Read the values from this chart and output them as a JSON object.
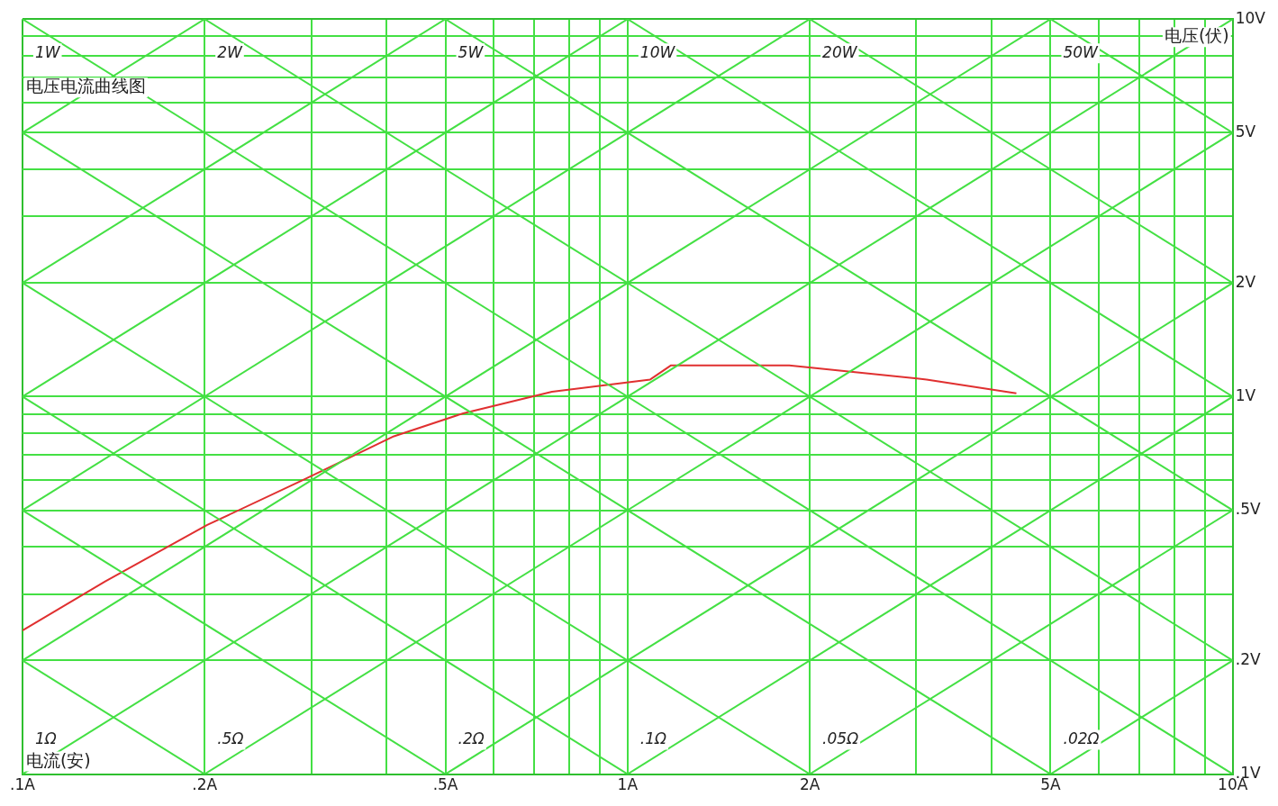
{
  "chart_data": {
    "type": "line",
    "title": "电压电流曲线图",
    "xlabel": "电流(安)",
    "ylabel": "电压(伏)",
    "log": "xy",
    "grid": true,
    "legend": false,
    "marker": "none",
    "line_style": "solid",
    "xlim": [
      0.1,
      10
    ],
    "ylim": [
      0.1,
      10
    ],
    "xticks": [
      {
        "value": 0.1,
        "label": ".1A"
      },
      {
        "value": 0.2,
        "label": ".2A"
      },
      {
        "value": 0.3,
        "label": null
      },
      {
        "value": 0.4,
        "label": null
      },
      {
        "value": 0.5,
        "label": ".5A"
      },
      {
        "value": 0.6,
        "label": null
      },
      {
        "value": 0.7,
        "label": null
      },
      {
        "value": 0.8,
        "label": null
      },
      {
        "value": 0.9,
        "label": null
      },
      {
        "value": 1,
        "label": "1A"
      },
      {
        "value": 2,
        "label": "2A"
      },
      {
        "value": 3,
        "label": null
      },
      {
        "value": 4,
        "label": null
      },
      {
        "value": 5,
        "label": "5A"
      },
      {
        "value": 6,
        "label": null
      },
      {
        "value": 7,
        "label": null
      },
      {
        "value": 8,
        "label": null
      },
      {
        "value": 9,
        "label": null
      },
      {
        "value": 10,
        "label": "10A"
      }
    ],
    "yticks": [
      {
        "value": 0.1,
        "label": ".1V"
      },
      {
        "value": 0.2,
        "label": ".2V"
      },
      {
        "value": 0.3,
        "label": null
      },
      {
        "value": 0.4,
        "label": null
      },
      {
        "value": 0.5,
        "label": ".5V"
      },
      {
        "value": 0.6,
        "label": null
      },
      {
        "value": 0.7,
        "label": null
      },
      {
        "value": 0.8,
        "label": null
      },
      {
        "value": 0.9,
        "label": null
      },
      {
        "value": 1,
        "label": "1V"
      },
      {
        "value": 2,
        "label": "2V"
      },
      {
        "value": 3,
        "label": null
      },
      {
        "value": 4,
        "label": null
      },
      {
        "value": 5,
        "label": "5V"
      },
      {
        "value": 6,
        "label": null
      },
      {
        "value": 7,
        "label": null
      },
      {
        "value": 8,
        "label": null
      },
      {
        "value": 9,
        "label": null
      },
      {
        "value": 10,
        "label": "10V"
      }
    ],
    "series": [
      {
        "color": "#44e044",
        "x": [
          0.1,
          0.2
        ],
        "values": [
          0.2,
          0.1
        ]
      },
      {
        "color": "#44e044",
        "x": [
          0.1,
          0.5
        ],
        "values": [
          0.5,
          0.1
        ]
      },
      {
        "color": "#44e044",
        "x": [
          0.1,
          1
        ],
        "values": [
          1,
          0.1
        ]
      },
      {
        "color": "#44e044",
        "x": [
          0.1,
          2
        ],
        "values": [
          2,
          0.1
        ]
      },
      {
        "color": "#44e044",
        "x": [
          0.1,
          5
        ],
        "values": [
          5,
          0.1
        ]
      },
      {
        "name": "1W",
        "color": "#44e044",
        "x": [
          0.1,
          10
        ],
        "values": [
          10,
          0.1
        ]
      },
      {
        "name": "2W",
        "color": "#44e044",
        "x": [
          0.2,
          10
        ],
        "values": [
          10,
          0.2
        ]
      },
      {
        "name": "5W",
        "color": "#44e044",
        "x": [
          0.5,
          10
        ],
        "values": [
          10,
          0.5
        ]
      },
      {
        "name": "10W",
        "color": "#44e044",
        "x": [
          1,
          10
        ],
        "values": [
          10,
          1
        ]
      },
      {
        "name": "20W",
        "color": "#44e044",
        "x": [
          2,
          10
        ],
        "values": [
          10,
          2
        ]
      },
      {
        "name": "50W",
        "color": "#44e044",
        "x": [
          5,
          10
        ],
        "values": [
          10,
          5
        ]
      },
      {
        "name": ".02Ω",
        "color": "#44e044",
        "x": [
          5,
          10
        ],
        "values": [
          0.1,
          0.2
        ]
      },
      {
        "name": ".05Ω",
        "color": "#44e044",
        "x": [
          2,
          10
        ],
        "values": [
          0.1,
          0.5
        ]
      },
      {
        "name": ".1Ω",
        "color": "#44e044",
        "x": [
          1,
          10
        ],
        "values": [
          0.1,
          1
        ]
      },
      {
        "name": ".2Ω",
        "color": "#44e044",
        "x": [
          0.5,
          10
        ],
        "values": [
          0.1,
          2
        ]
      },
      {
        "name": ".5Ω",
        "color": "#44e044",
        "x": [
          0.2,
          10
        ],
        "values": [
          0.1,
          5
        ]
      },
      {
        "name": "1Ω",
        "color": "#44e044",
        "x": [
          0.1,
          10
        ],
        "values": [
          0.1,
          10
        ]
      },
      {
        "color": "#44e044",
        "x": [
          0.1,
          5
        ],
        "values": [
          0.2,
          10
        ]
      },
      {
        "color": "#44e044",
        "x": [
          0.1,
          2
        ],
        "values": [
          0.5,
          10
        ]
      },
      {
        "color": "#44e044",
        "x": [
          0.1,
          1
        ],
        "values": [
          1,
          10
        ]
      },
      {
        "color": "#44e044",
        "x": [
          0.1,
          0.5
        ],
        "values": [
          2,
          10
        ]
      },
      {
        "color": "#44e044",
        "x": [
          0.1,
          0.2
        ],
        "values": [
          5,
          10
        ]
      },
      {
        "color": "#e03030",
        "x": [
          0.1,
          0.137,
          0.202,
          0.29,
          0.411,
          0.535,
          0.75,
          1.09,
          1.18,
          1.85,
          2.26,
          3.12,
          4.39
        ],
        "values": [
          0.24,
          0.324,
          0.457,
          0.6,
          0.785,
          0.903,
          1.03,
          1.11,
          1.21,
          1.21,
          1.17,
          1.11,
          1.02
        ]
      }
    ]
  }
}
